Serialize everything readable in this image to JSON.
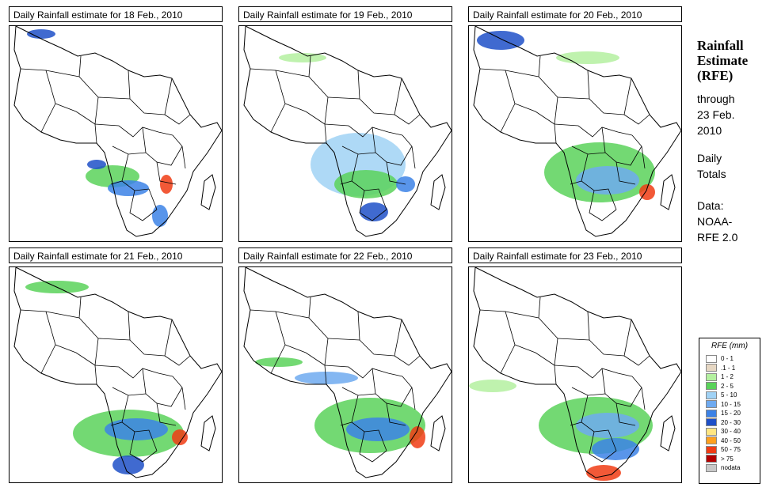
{
  "sidebar": {
    "title_line1": "Rainfall",
    "title_line2": "Estimate",
    "title_line3": "(RFE)",
    "through": "through",
    "date_line1": "23 Feb.",
    "date_line2": "2010",
    "daily_line1": "Daily",
    "daily_line2": "Totals",
    "data_line1": "Data:",
    "data_line2": "NOAA-",
    "data_line3": "RFE 2.0"
  },
  "legend": {
    "title": "RFE (mm)",
    "items": [
      {
        "label": "0 - 1",
        "color": "#ffffff"
      },
      {
        "label": ".1 - 1",
        "color": "#e6d7c3"
      },
      {
        "label": "1 - 2",
        "color": "#b4f0a0"
      },
      {
        "label": "2 - 5",
        "color": "#5ad25a"
      },
      {
        "label": "5 - 10",
        "color": "#a0d2f5"
      },
      {
        "label": "10 - 15",
        "color": "#6eaaf0"
      },
      {
        "label": "15 - 20",
        "color": "#3c82e6"
      },
      {
        "label": "20 - 30",
        "color": "#1e50c8"
      },
      {
        "label": "30 - 40",
        "color": "#ffe682"
      },
      {
        "label": "40 - 50",
        "color": "#ffa01e"
      },
      {
        "label": "50 - 75",
        "color": "#f03c14"
      },
      {
        "label": "> 75",
        "color": "#b40000"
      },
      {
        "label": "nodata",
        "color": "#c8c8c8"
      }
    ]
  },
  "panels": [
    {
      "title": "Daily Rainfall estimate for  18 Feb., 2010"
    },
    {
      "title": "Daily Rainfall estimate for  19 Feb., 2010"
    },
    {
      "title": "Daily Rainfall estimate for  20 Feb., 2010"
    },
    {
      "title": "Daily Rainfall estimate for  21 Feb., 2010"
    },
    {
      "title": "Daily Rainfall estimate for  22 Feb., 2010"
    },
    {
      "title": "Daily Rainfall estimate for  23 Feb., 2010"
    }
  ]
}
